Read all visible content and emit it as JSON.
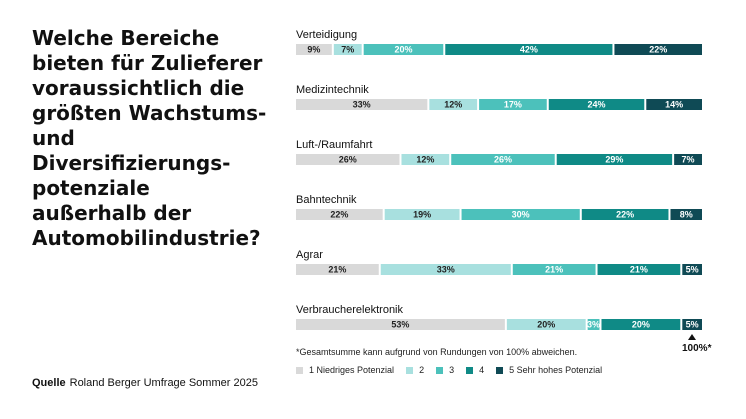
{
  "title": "Welche Bereiche\nbieten für Zulieferer\nvoraussichtlich die\ngrößten Wachstums-\nund Diversifizierungs-\npotenziale\naußerhalb der\nAutomobilindustrie?",
  "source": {
    "label": "Quelle",
    "text": "Roland Berger Umfrage Sommer 2025"
  },
  "footnote": "*Gesamtsumme kann aufgrund von Rundungen von 100% abweichen.",
  "total_label": "100%*",
  "legend": [
    {
      "label": "1 Niedriges Potenzial",
      "color": "#d9d9d9"
    },
    {
      "label": "2",
      "color": "#a8e0df"
    },
    {
      "label": "3",
      "color": "#4cc1bb"
    },
    {
      "label": "4",
      "color": "#0f8a86"
    },
    {
      "label": "5 Sehr hohes Potenzial",
      "color": "#0f4a55"
    }
  ],
  "chart_data": {
    "type": "bar",
    "stacked": true,
    "orientation": "horizontal",
    "categories": [
      "Verteidigung",
      "Medizintechnik",
      "Luft-/Raumfahrt",
      "Bahntechnik",
      "Agrar",
      "Verbraucherelektronik"
    ],
    "series": [
      {
        "name": "1 Niedriges Potenzial",
        "color": "#d9d9d9",
        "text_color": "#222222",
        "values": [
          9,
          33,
          26,
          22,
          21,
          53
        ]
      },
      {
        "name": "2",
        "color": "#a8e0df",
        "text_color": "#222222",
        "values": [
          7,
          12,
          12,
          19,
          33,
          20
        ]
      },
      {
        "name": "3",
        "color": "#4cc1bb",
        "text_color": "#ffffff",
        "values": [
          20,
          17,
          26,
          30,
          21,
          3
        ]
      },
      {
        "name": "4",
        "color": "#0f8a86",
        "text_color": "#ffffff",
        "values": [
          42,
          24,
          29,
          22,
          21,
          20
        ]
      },
      {
        "name": "5 Sehr hohes Potenzial",
        "color": "#0f4a55",
        "text_color": "#ffffff",
        "values": [
          22,
          14,
          7,
          8,
          5,
          5
        ]
      }
    ],
    "value_suffix": "%",
    "xlim": [
      0,
      100
    ]
  }
}
